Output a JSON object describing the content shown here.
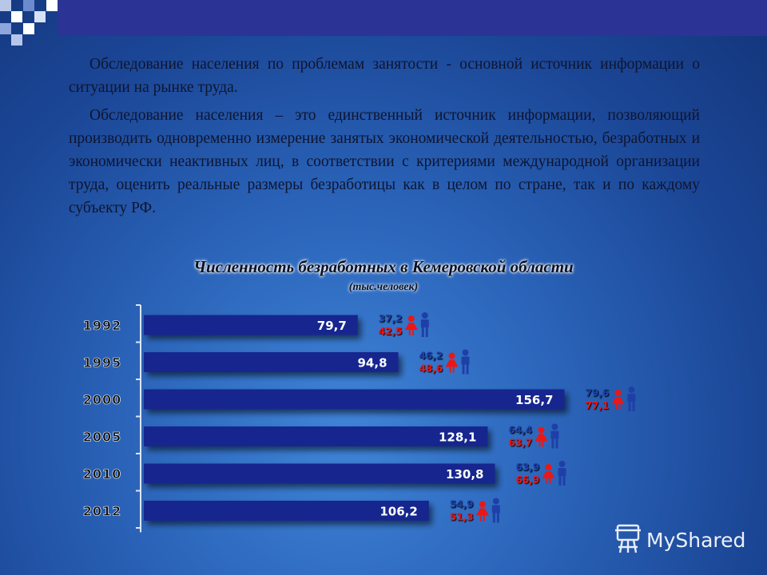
{
  "paragraphs": [
    "Обследование населения по проблемам занятости - основной источник информации о ситуации на рынке труда.",
    "Обследование населения – это единственный источник информации, позволяющий производить одновременно измерение занятых экономической деятельностью, безработных и экономически неактивных лиц, в соответствии с критериями международной организации труда, оценить реальные размеры безработицы как в целом по стране, так и по каждому субъекту РФ."
  ],
  "watermark": "MyShared",
  "chart_data": {
    "type": "bar",
    "orientation": "horizontal",
    "title": "Численность безработных в Кемеровской области",
    "subtitle": "(тыс.человек)",
    "categories": [
      "1992",
      "1995",
      "2000",
      "2005",
      "2010",
      "2012"
    ],
    "values": [
      79.7,
      94.8,
      156.7,
      128.1,
      130.8,
      106.2
    ],
    "value_labels": [
      "79,7",
      "94,8",
      "156,7",
      "128,1",
      "130,8",
      "106,2"
    ],
    "male_labels": [
      "37,2",
      "46,2",
      "79,6",
      "64,4",
      "63,9",
      "54,9"
    ],
    "female_labels": [
      "42,5",
      "48,6",
      "77,1",
      "63,7",
      "66,9",
      "51,3"
    ],
    "xlim": [
      0,
      157
    ],
    "grid": false,
    "legend": "none",
    "colors": {
      "bar": "#16288e",
      "male": "#1f3fa8",
      "female": "#e81818",
      "bar_text": "#ffffff",
      "year_text": "#0a0a0a"
    }
  }
}
